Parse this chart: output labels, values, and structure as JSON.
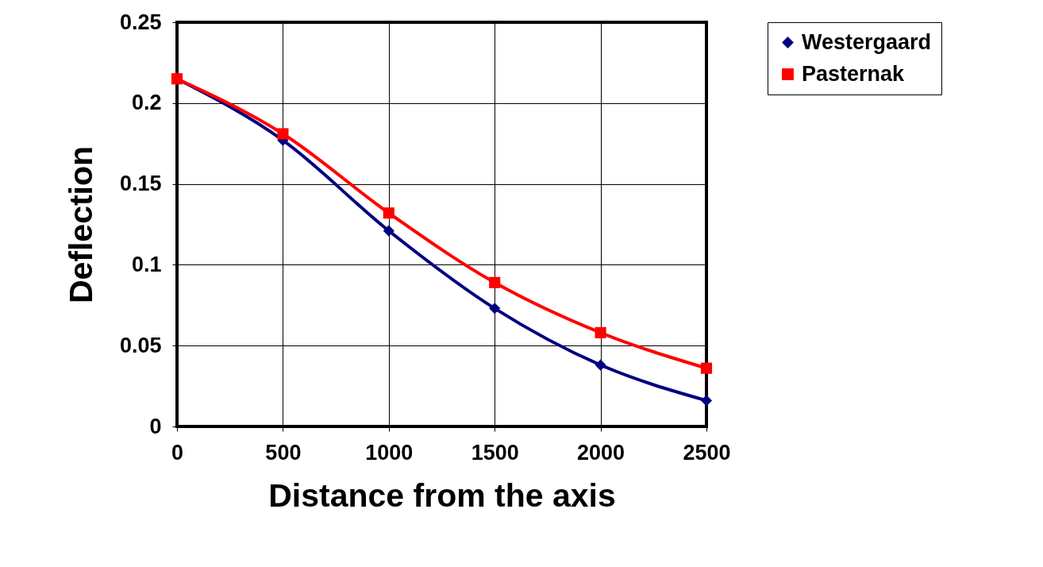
{
  "chart_data": {
    "type": "line",
    "xlabel": "Distance from the axis",
    "ylabel": "Deflection",
    "x": [
      0,
      500,
      1000,
      1500,
      2000,
      2500
    ],
    "series": [
      {
        "name": "Westergaard",
        "color": "#000080",
        "marker": "diamond",
        "values": [
          0.215,
          0.177,
          0.121,
          0.073,
          0.038,
          0.016
        ]
      },
      {
        "name": "Pasternak",
        "color": "#ff0000",
        "marker": "square",
        "values": [
          0.215,
          0.181,
          0.132,
          0.089,
          0.058,
          0.036
        ]
      }
    ],
    "xlim": [
      0,
      2500
    ],
    "xticks": [
      0,
      500,
      1000,
      1500,
      2000,
      2500
    ],
    "ylim": [
      0,
      0.25
    ],
    "yticks": [
      0,
      0.05,
      0.1,
      0.15,
      0.2,
      0.25
    ],
    "grid": true,
    "legend": "right"
  }
}
